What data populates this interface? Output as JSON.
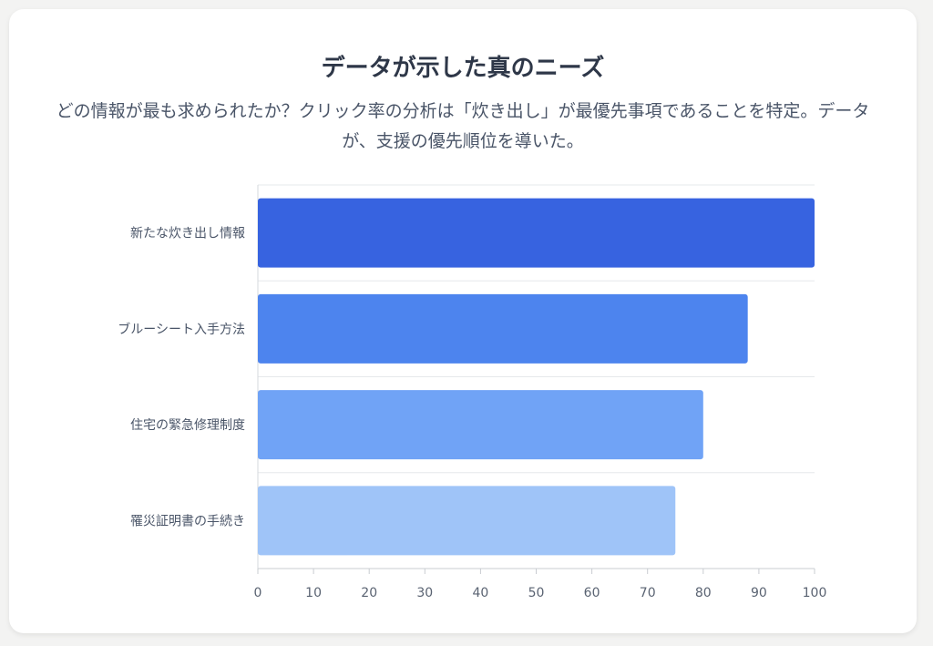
{
  "title": "データが示した真のニーズ",
  "subtitle": "どの情報が最も求められたか？クリック率の分析は「炊き出し」が最優先事項であることを特定。データが、支援の優先順位を導いた。",
  "chart_data": {
    "type": "bar",
    "orientation": "horizontal",
    "categories": [
      "新たな炊き出し情報",
      "ブルーシート入手方法",
      "住宅の緊急修理制度",
      "罹災証明書の手続き"
    ],
    "values": [
      100,
      88,
      80,
      75
    ],
    "colors": [
      "#3763e0",
      "#4d84ee",
      "#70a3f6",
      "#9fc4f8"
    ],
    "xlim": [
      0,
      100
    ],
    "xticks": [
      "0",
      "10",
      "20",
      "30",
      "40",
      "50",
      "60",
      "70",
      "80",
      "90",
      "100"
    ],
    "grid": true
  }
}
